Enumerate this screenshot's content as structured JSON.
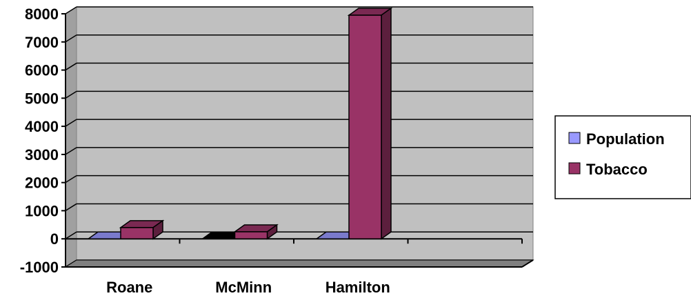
{
  "chart_data": {
    "type": "bar",
    "title": "",
    "xlabel": "",
    "ylabel": "",
    "categories": [
      "Roane",
      "McMinn",
      "Hamilton"
    ],
    "series": [
      {
        "name": "Population",
        "values": [
          0,
          0,
          0
        ]
      },
      {
        "name": "Tobacco",
        "values": [
          400,
          250,
          7950
        ]
      }
    ],
    "ylim": [
      -1000,
      8000
    ],
    "yticks": [
      -1000,
      0,
      1000,
      2000,
      3000,
      4000,
      5000,
      6000,
      7000,
      8000
    ],
    "grid": true,
    "legend_position": "right",
    "colors": {
      "Population": "#9999ff",
      "Population_zero_alt": "#000000",
      "Tobacco": "#993366",
      "wall": "#c0c0c0",
      "floor": "#808080"
    }
  }
}
